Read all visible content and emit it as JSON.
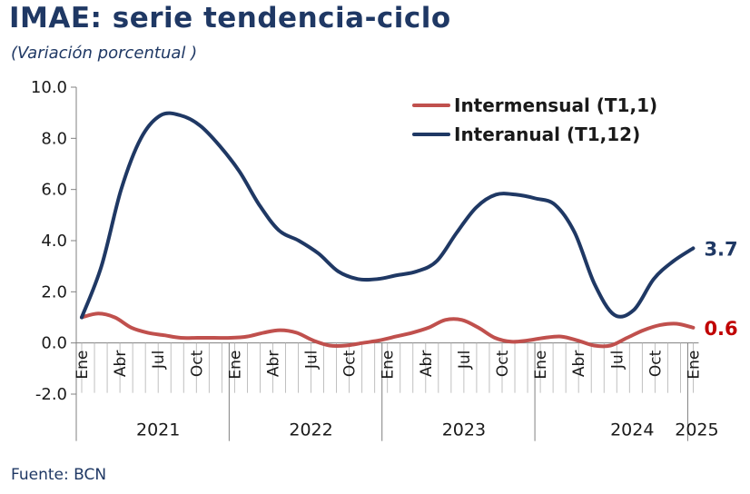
{
  "title": "IMAE: serie tendencia-ciclo",
  "subtitle": "(Variación porcentual )",
  "source": "Fuente: BCN",
  "chart_data": {
    "type": "line",
    "y_ticks": [
      "10.0",
      "8.0",
      "6.0",
      "4.0",
      "2.0",
      "0.0",
      "-2.0"
    ],
    "ylim": [
      -2,
      10
    ],
    "x_tick_labels": [
      "Ene",
      "Abr",
      "Jul",
      "Oct",
      "Ene",
      "Abr",
      "Jul",
      "Oct",
      "Ene",
      "Abr",
      "Jul",
      "Oct",
      "Ene",
      "Abr",
      "Jul",
      "Oct",
      "Ene"
    ],
    "years": [
      "2021",
      "2022",
      "2023",
      "2024",
      "2025"
    ],
    "series": [
      {
        "name": "Intermensual (T1,1)",
        "color": "#c0504d",
        "end_label": "0.6",
        "values": [
          1.0,
          1.15,
          1.0,
          0.6,
          0.4,
          0.3,
          0.2,
          0.2,
          0.2,
          0.2,
          0.25,
          0.4,
          0.5,
          0.4,
          0.1,
          -0.1,
          -0.1,
          0.0,
          0.1,
          0.25,
          0.4,
          0.6,
          0.9,
          0.9,
          0.6,
          0.2,
          0.05,
          0.1,
          0.2,
          0.25,
          0.1,
          -0.1,
          -0.1,
          0.2,
          0.5,
          0.7,
          0.75,
          0.6
        ]
      },
      {
        "name": "Interanual (T1,12)",
        "color": "#1f3864",
        "end_label": "3.7",
        "values": [
          1.0,
          3.0,
          6.0,
          8.0,
          8.9,
          8.9,
          8.5,
          7.7,
          6.7,
          5.4,
          4.4,
          4.0,
          3.5,
          2.8,
          2.5,
          2.5,
          2.65,
          2.8,
          3.2,
          4.3,
          5.3,
          5.8,
          5.8,
          5.65,
          5.4,
          4.3,
          2.3,
          1.1,
          1.3,
          2.5,
          3.2,
          3.7
        ]
      }
    ]
  }
}
